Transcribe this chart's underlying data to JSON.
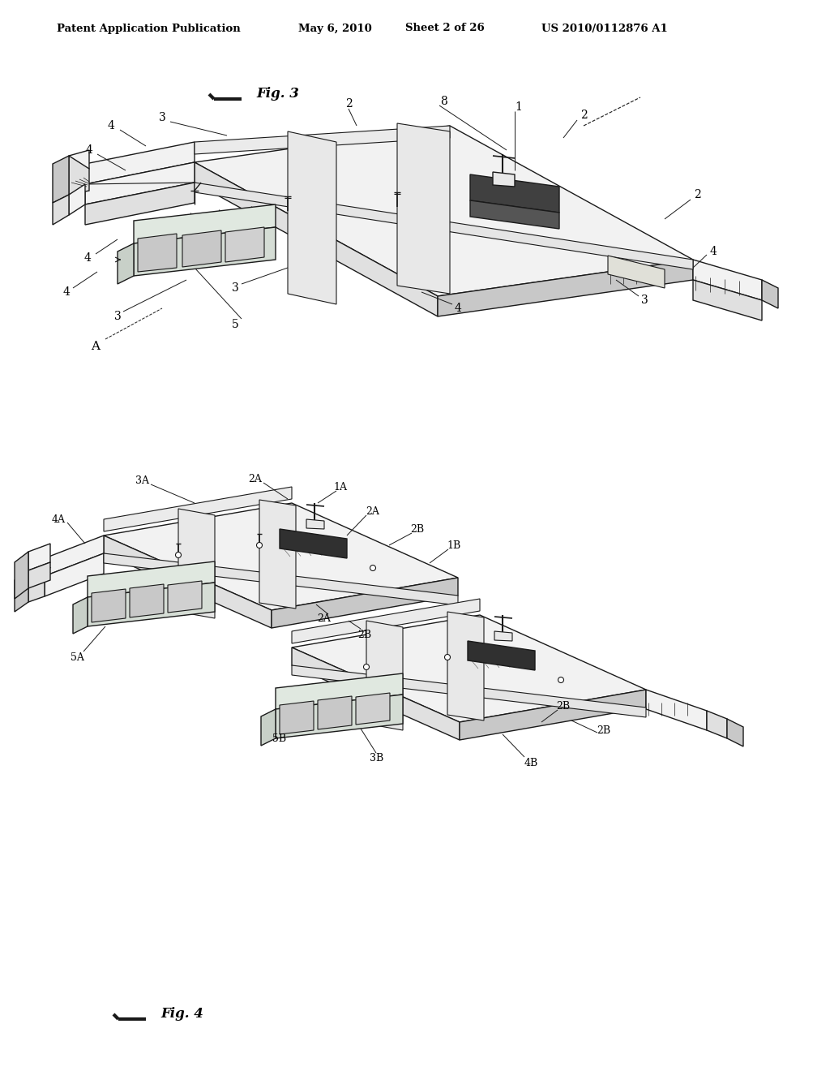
{
  "background_color": "#ffffff",
  "header_text": "Patent Application Publication",
  "header_date": "May 6, 2010",
  "header_sheet": "Sheet 2 of 26",
  "header_patent": "US 2010/0112876 A1",
  "lc": "#1a1a1a",
  "fc_deck": "#f2f2f2",
  "fc_side": "#e0e0e0",
  "fc_dark": "#c8c8c8",
  "fc_box": "#e8e8e8",
  "fc_hatch": "#888888"
}
